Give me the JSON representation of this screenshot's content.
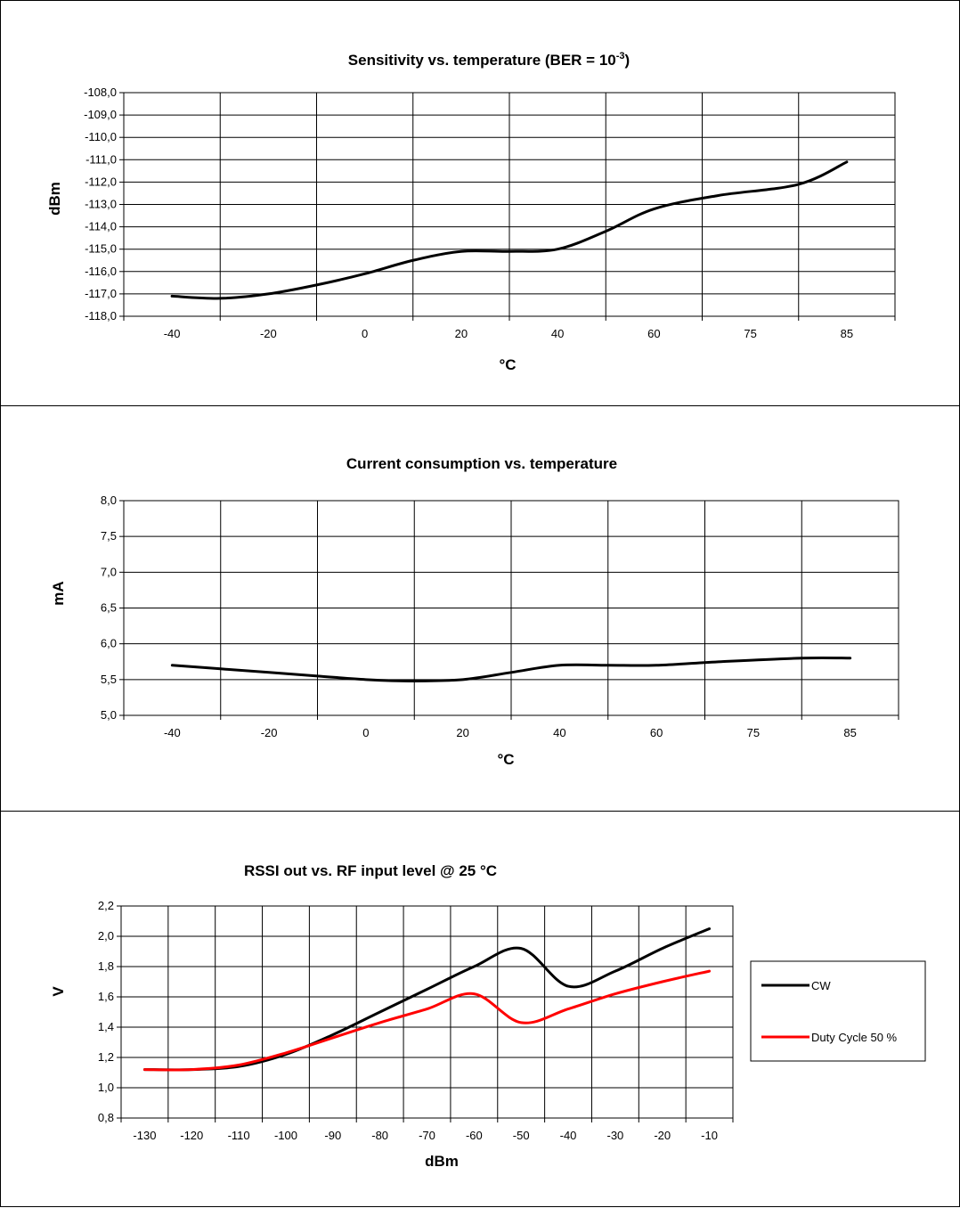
{
  "chart_data": [
    {
      "type": "line",
      "title": "Sensitivity vs. temperature (BER = 10",
      "title_sup": "-3",
      "title_end": ")",
      "xlabel": "°C",
      "ylabel": "dBm",
      "categories": [
        "-40",
        "-20",
        "0",
        "20",
        "40",
        "60",
        "75",
        "85"
      ],
      "yticks": [
        "-108,0",
        "-109,0",
        "-110,0",
        "-111,0",
        "-112,0",
        "-113,0",
        "-114,0",
        "-115,0",
        "-116,0",
        "-117,0",
        "-118,0"
      ],
      "ylim": [
        -118,
        -108
      ],
      "grid": true,
      "series": [
        {
          "color": "#000000",
          "points": [
            [
              -40,
              -117.1
            ],
            [
              -30,
              -117.2
            ],
            [
              -20,
              -117.0
            ],
            [
              -10,
              -116.6
            ],
            [
              0,
              -116.1
            ],
            [
              10,
              -115.5
            ],
            [
              20,
              -115.1
            ],
            [
              30,
              -115.1
            ],
            [
              40,
              -115.0
            ],
            [
              50,
              -114.2
            ],
            [
              60,
              -113.2
            ],
            [
              70,
              -112.6
            ],
            [
              80,
              -112.1
            ],
            [
              85,
              -111.1
            ]
          ]
        }
      ]
    },
    {
      "type": "line",
      "title": "Current consumption  vs. temperature",
      "xlabel": "°C",
      "ylabel": "mA",
      "categories": [
        "-40",
        "-20",
        "0",
        "20",
        "40",
        "60",
        "75",
        "85"
      ],
      "yticks": [
        "8,0",
        "7,5",
        "7,0",
        "6,5",
        "6,0",
        "5,5",
        "5,0"
      ],
      "ylim": [
        5.0,
        8.0
      ],
      "grid": true,
      "series": [
        {
          "color": "#000000",
          "points": [
            [
              -40,
              5.7
            ],
            [
              -30,
              5.65
            ],
            [
              -20,
              5.6
            ],
            [
              -10,
              5.55
            ],
            [
              0,
              5.5
            ],
            [
              10,
              5.48
            ],
            [
              20,
              5.5
            ],
            [
              30,
              5.6
            ],
            [
              40,
              5.7
            ],
            [
              50,
              5.7
            ],
            [
              60,
              5.7
            ],
            [
              70,
              5.75
            ],
            [
              80,
              5.8
            ],
            [
              85,
              5.8
            ]
          ]
        }
      ]
    },
    {
      "type": "line",
      "title": "RSSI out vs. RF input level @ 25 °C",
      "xlabel": "dBm",
      "ylabel": "V",
      "categories": [
        "-130",
        "-120",
        "-110",
        "-100",
        "-90",
        "-80",
        "-70",
        "-60",
        "-50",
        "-40",
        "-30",
        "-20",
        "-10"
      ],
      "yticks": [
        "2,2",
        "2,0",
        "1,8",
        "1,6",
        "1,4",
        "1,2",
        "1,0",
        "0,8"
      ],
      "ylim": [
        0.8,
        2.2
      ],
      "grid": true,
      "legend": "right",
      "series": [
        {
          "name": "CW",
          "color": "#000000",
          "points": [
            [
              -130,
              1.12
            ],
            [
              -120,
              1.12
            ],
            [
              -110,
              1.14
            ],
            [
              -100,
              1.22
            ],
            [
              -90,
              1.35
            ],
            [
              -80,
              1.5
            ],
            [
              -70,
              1.65
            ],
            [
              -60,
              1.8
            ],
            [
              -50,
              1.92
            ],
            [
              -40,
              1.67
            ],
            [
              -30,
              1.77
            ],
            [
              -20,
              1.92
            ],
            [
              -10,
              2.05
            ]
          ]
        },
        {
          "name": "Duty Cycle 50 %",
          "color": "#ff0000",
          "points": [
            [
              -130,
              1.12
            ],
            [
              -120,
              1.12
            ],
            [
              -110,
              1.15
            ],
            [
              -100,
              1.23
            ],
            [
              -90,
              1.33
            ],
            [
              -80,
              1.43
            ],
            [
              -70,
              1.52
            ],
            [
              -60,
              1.62
            ],
            [
              -50,
              1.43
            ],
            [
              -40,
              1.52
            ],
            [
              -30,
              1.62
            ],
            [
              -20,
              1.7
            ],
            [
              -10,
              1.77
            ]
          ]
        }
      ]
    }
  ]
}
